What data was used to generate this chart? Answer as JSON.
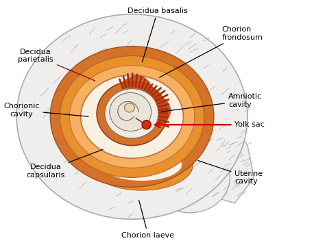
{
  "bg_color": "#ffffff",
  "labels": {
    "decidua_basalis": "Decidua basalis",
    "chorion_frondosum": "Chorion\nfrondosum",
    "decidua_parietalis": "Decidua\nparietalis",
    "chorionic_cavity": "Chorionic\ncavity",
    "amniotic_cavity": "Amniotic\ncavity",
    "yolk_sac": "Yolk sac",
    "decidua_capsularis": "Decidua\ncapsularis",
    "uterine_cavity": "Uterine\ncavity",
    "chorion_laeve": "Chorion laeve"
  },
  "colors": {
    "uterus_outer_fill": "#f0eeec",
    "uterus_outer_edge": "#aaaaaa",
    "hatch_line": "#b0b0b0",
    "orange_outer": "#d4722a",
    "orange_mid": "#e8902a",
    "orange_light": "#f5b060",
    "chorionic_fill": "#f8f0e0",
    "chorionic_edge": "#c07040",
    "chorion_frond_fill": "#c84010",
    "chorion_frond_spike": "#a03010",
    "amnion_fill": "#f0ece4",
    "amnion_edge": "#907060",
    "amniotic_fill": "#e8e4da",
    "fetus_line": "#806040",
    "yolk_fill": "#cc3010",
    "yolk_edge": "#8b1000",
    "red_arrow": "#cc1010",
    "line_color": "#000000",
    "dark_line": "#1a1a1a"
  },
  "figsize": [
    4.74,
    3.55
  ],
  "dpi": 100
}
